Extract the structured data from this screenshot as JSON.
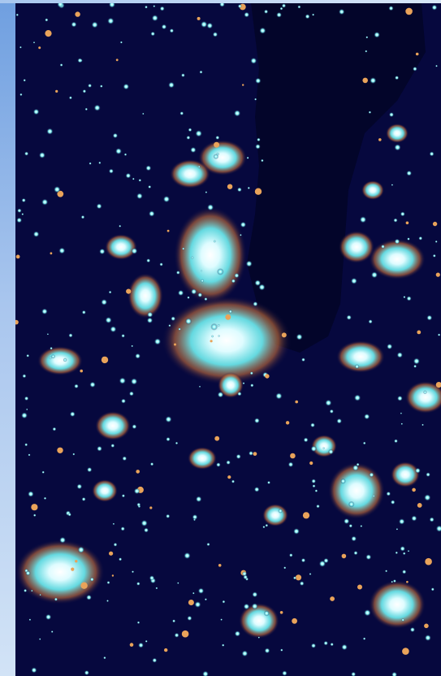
{
  "image": {
    "subject": "night-satellite-lights",
    "colors": {
      "background": "#06083e",
      "lake": "#03052a",
      "glow_core": "#eefcff",
      "glow_cyan": "#6ff0f2",
      "glow_orange": "#c8703a",
      "frame": "#8fb4e6"
    }
  }
}
